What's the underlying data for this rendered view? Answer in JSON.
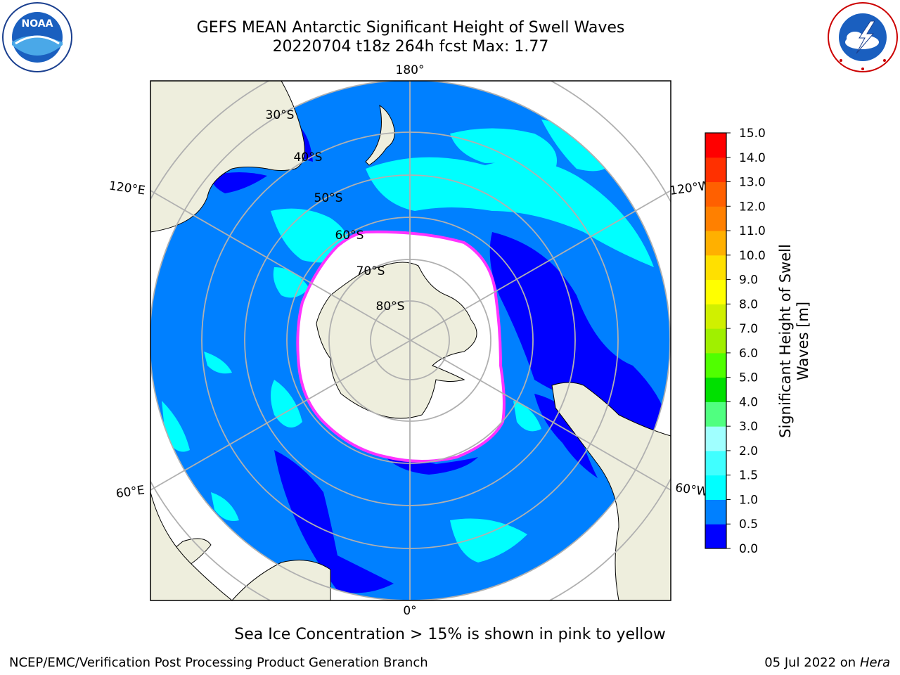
{
  "header": {
    "title_line1": "GEFS MEAN Antarctic Significant Height of Swell Waves",
    "title_line2": "20220704 t18z 264h fcst   Max: 1.77"
  },
  "logos": {
    "noaa_text": "NOAA",
    "noaa_ring_text": "NATIONAL OCEANIC AND ATMOSPHERIC ADMINISTRATION · U.S. DEPARTMENT OF COMMERCE",
    "nws_ring_text": "NATIONAL WEATHER SERVICE"
  },
  "map": {
    "longitude_labels": {
      "top": "180°",
      "bottom": "0°",
      "left_upper": "120°E",
      "left_lower": "60°E",
      "right_upper": "120°W",
      "right_lower": "60°W"
    },
    "latitude_labels": [
      "30°S",
      "40°S",
      "50°S",
      "60°S",
      "70°S",
      "80°S"
    ],
    "colors": {
      "ocean_low": "#0000ff",
      "ocean_mid": "#0080ff",
      "ocean_swell": "#00ffff",
      "ice": "#ffffff",
      "land": "#eeeedd",
      "ice_edge": "#ff33ff",
      "grid": "#b0b0b0"
    }
  },
  "colorbar": {
    "label": "Significant Height of Swell Waves [m]",
    "ticks": [
      "0.0",
      "0.5",
      "1.0",
      "1.5",
      "2.0",
      "3.0",
      "4.0",
      "5.0",
      "6.0",
      "7.0",
      "8.0",
      "9.0",
      "10.0",
      "11.0",
      "12.0",
      "13.0",
      "14.0",
      "15.0"
    ],
    "colors": [
      "#0000ff",
      "#0080ff",
      "#00ffff",
      "#40ffff",
      "#a0ffff",
      "#50ff80",
      "#00e000",
      "#50ff00",
      "#a0f000",
      "#d0f000",
      "#ffff00",
      "#ffe000",
      "#ffb000",
      "#ff8000",
      "#ff6000",
      "#ff3000",
      "#ff0000"
    ]
  },
  "caption": "Sea Ice Concentration > 15% is shown in pink to yellow",
  "footer": {
    "left": "NCEP/EMC/Verification Post Processing Product Generation Branch",
    "right_date": "05 Jul 2022 on ",
    "right_host": "Hera"
  }
}
